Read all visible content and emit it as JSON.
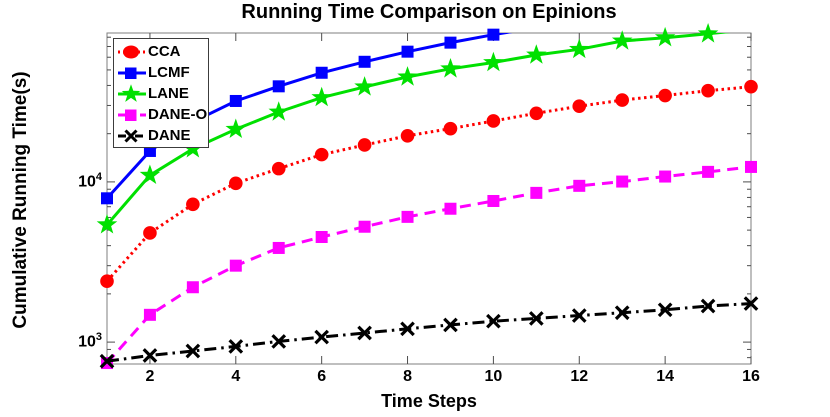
{
  "chart_data": {
    "type": "line",
    "title": "Running Time Comparison on Epinions",
    "xlabel": "Time Steps",
    "ylabel": "Cumulative Running Time(s)",
    "yscale": "log",
    "grid": false,
    "legend_position": "top-left",
    "x": [
      1,
      2,
      3,
      4,
      5,
      6,
      7,
      8,
      9,
      10,
      11,
      12,
      13,
      14,
      15,
      16
    ],
    "xlim": [
      1,
      16
    ],
    "ylim": [
      730,
      85000
    ],
    "xticks": [
      "2",
      "4",
      "6",
      "8",
      "10",
      "12",
      "14",
      "16"
    ],
    "xtick_values": [
      2,
      4,
      6,
      8,
      10,
      12,
      14,
      16
    ],
    "yticks": [
      {
        "value": 1000,
        "base": "10",
        "exponent": "3"
      },
      {
        "value": 10000,
        "base": "10",
        "exponent": "4"
      }
    ],
    "series": [
      {
        "name": "CCA",
        "color": "#ff0000",
        "line_style": "dotted",
        "marker": "circle",
        "values": [
          2400,
          4800,
          7250,
          9800,
          12100,
          14800,
          17000,
          19400,
          21500,
          24000,
          26800,
          29700,
          32400,
          34600,
          37100,
          39300
        ]
      },
      {
        "name": "LCMF",
        "color": "#0000ff",
        "line_style": "solid",
        "marker": "square",
        "values": [
          7900,
          15600,
          23700,
          32000,
          39500,
          48000,
          56200,
          65000,
          74000,
          83000,
          92000
        ]
      },
      {
        "name": "LANE",
        "color": "#00e000",
        "line_style": "solid",
        "marker": "star",
        "values": [
          5400,
          11000,
          16100,
          21300,
          27300,
          33600,
          39200,
          45200,
          50800,
          55600,
          62000,
          67200,
          75800,
          79500,
          84000,
          89500
        ]
      },
      {
        "name": "DANE-O",
        "color": "#ff00ff",
        "line_style": "dashed",
        "marker": "square",
        "values": [
          740,
          1480,
          2200,
          3000,
          3870,
          4530,
          5250,
          6050,
          6800,
          7600,
          8540,
          9450,
          10050,
          10800,
          11550,
          12400
        ]
      },
      {
        "name": "DANE",
        "color": "#000000",
        "line_style": "dashdot",
        "marker": "x",
        "values": [
          760,
          825,
          880,
          940,
          1010,
          1075,
          1140,
          1210,
          1280,
          1350,
          1405,
          1465,
          1525,
          1590,
          1680,
          1740
        ]
      }
    ],
    "axis_color": "#7f7f7f",
    "tick_color": "#4d4d4d"
  }
}
